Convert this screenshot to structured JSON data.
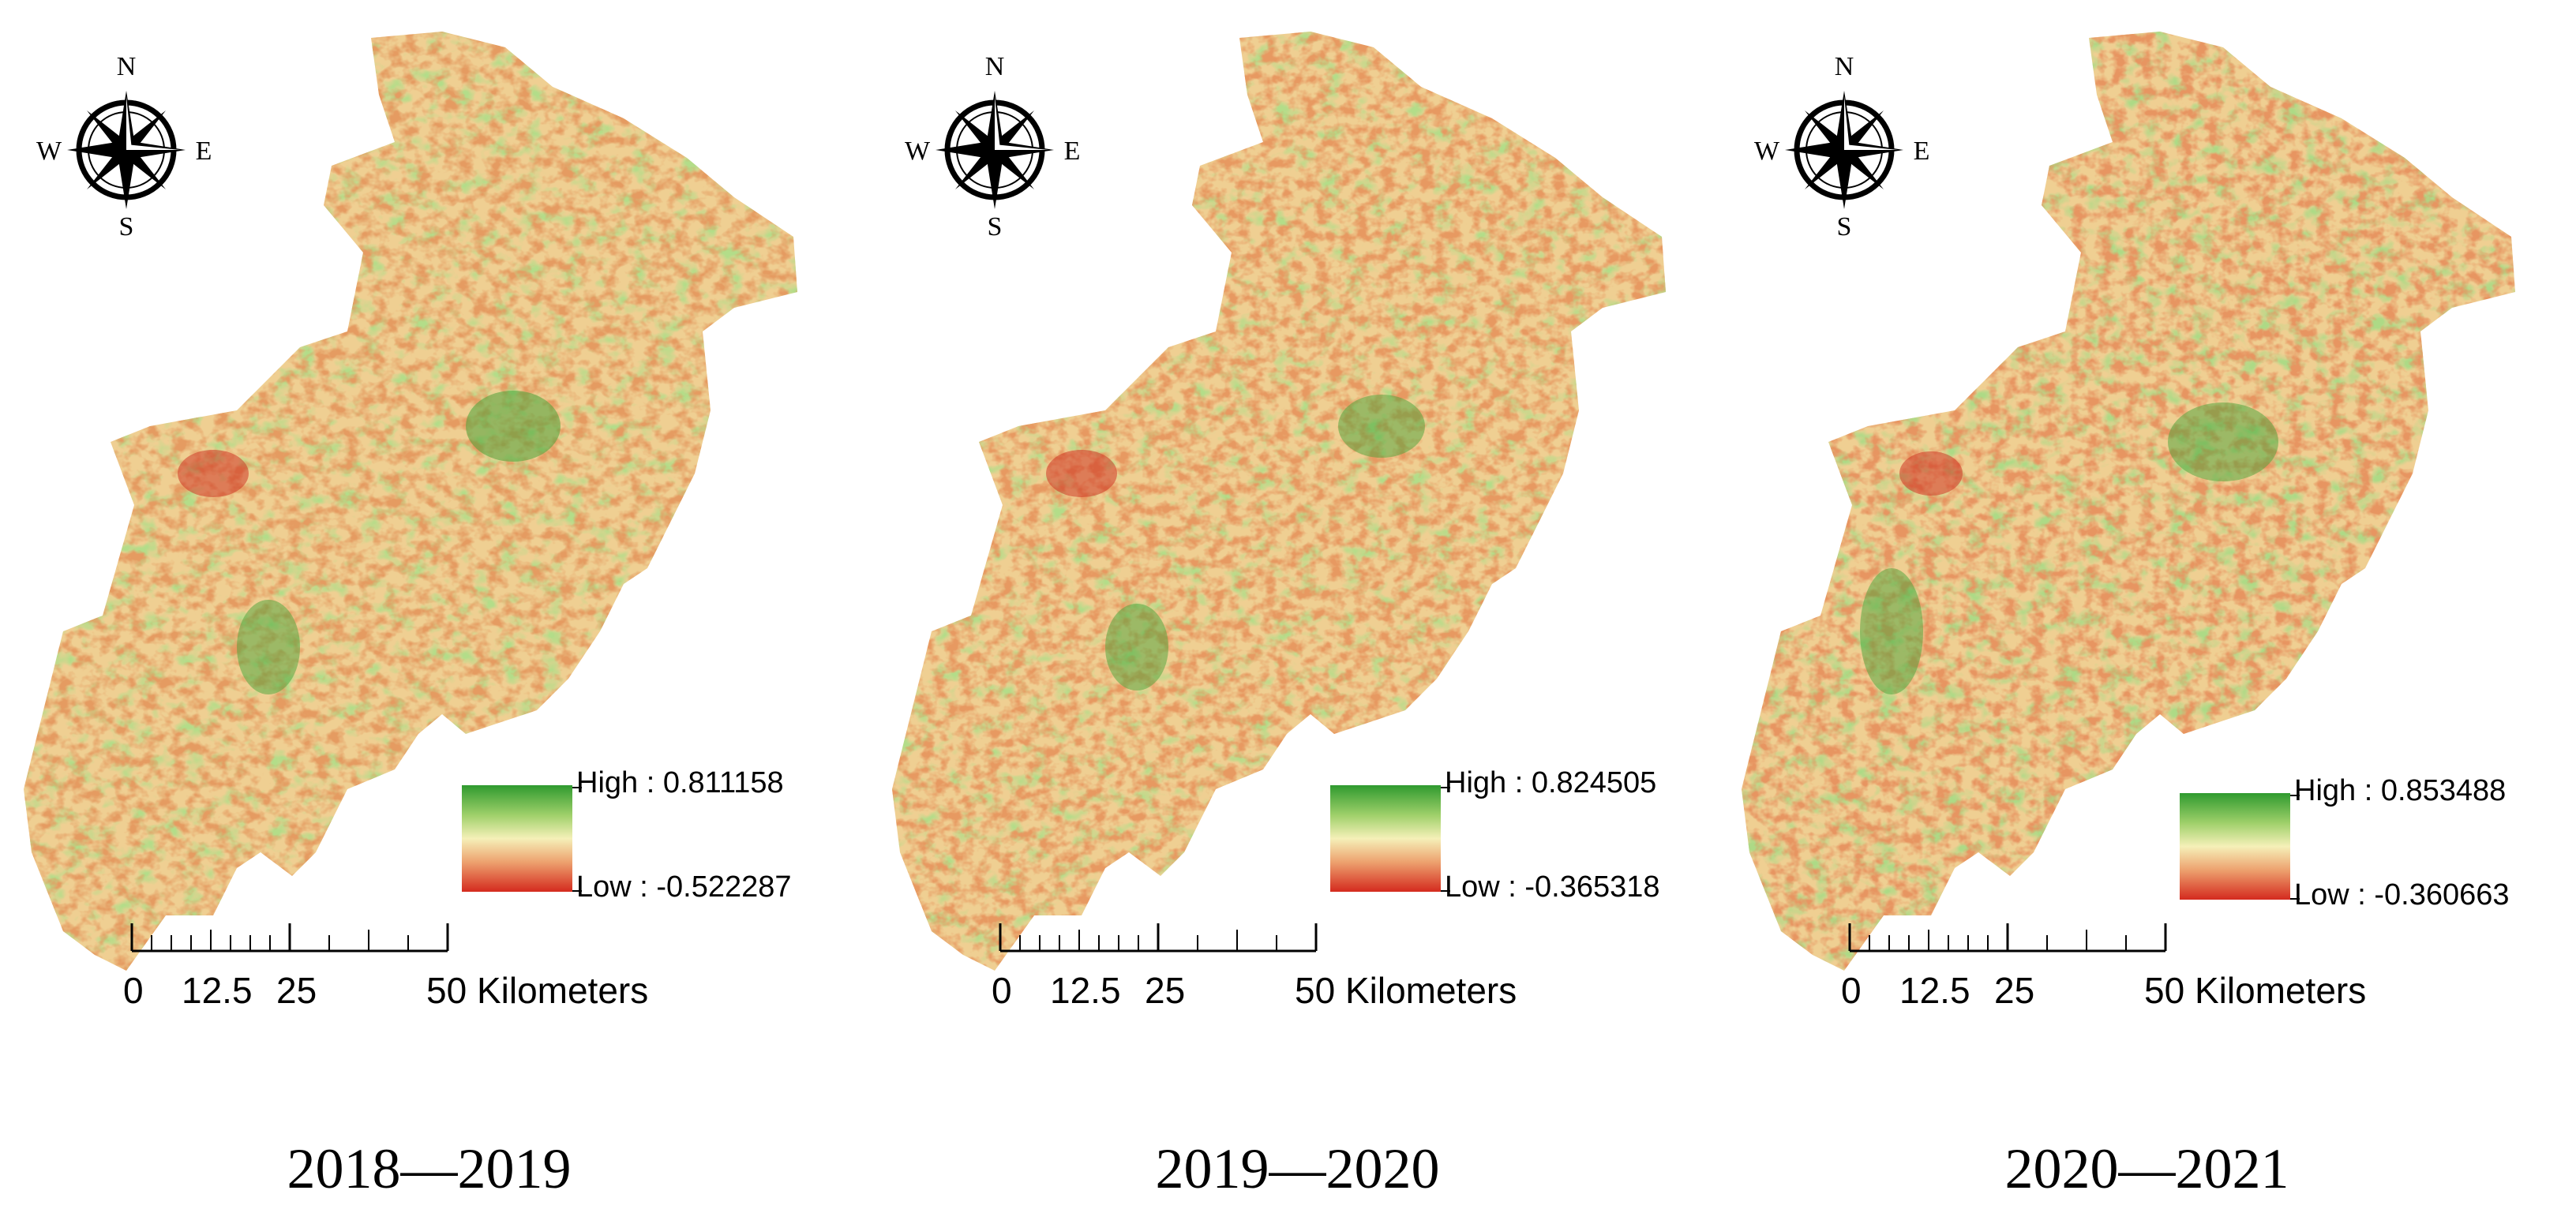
{
  "panels": [
    {
      "period": "2018—2019",
      "legend": {
        "high_label": "High : 0.811158",
        "low_label": "Low : -0.522287"
      }
    },
    {
      "period": "2019—2020",
      "legend": {
        "high_label": "High : 0.824505",
        "low_label": "Low : -0.365318"
      }
    },
    {
      "period": "2020—2021",
      "legend": {
        "high_label": "High : 0.853488",
        "low_label": "Low : -0.360663"
      }
    }
  ],
  "compass": {
    "north": "N",
    "south": "S",
    "east": "E",
    "west": "W"
  },
  "scale_bar": {
    "ticks": [
      "0",
      "12.5",
      "25"
    ],
    "end_label": "50 Kilometers"
  },
  "colors": {
    "high": "#2f9a2f",
    "mid": "#f5f0b8",
    "low": "#d42a1e"
  },
  "icons": {
    "compass": "compass-rose-icon"
  }
}
